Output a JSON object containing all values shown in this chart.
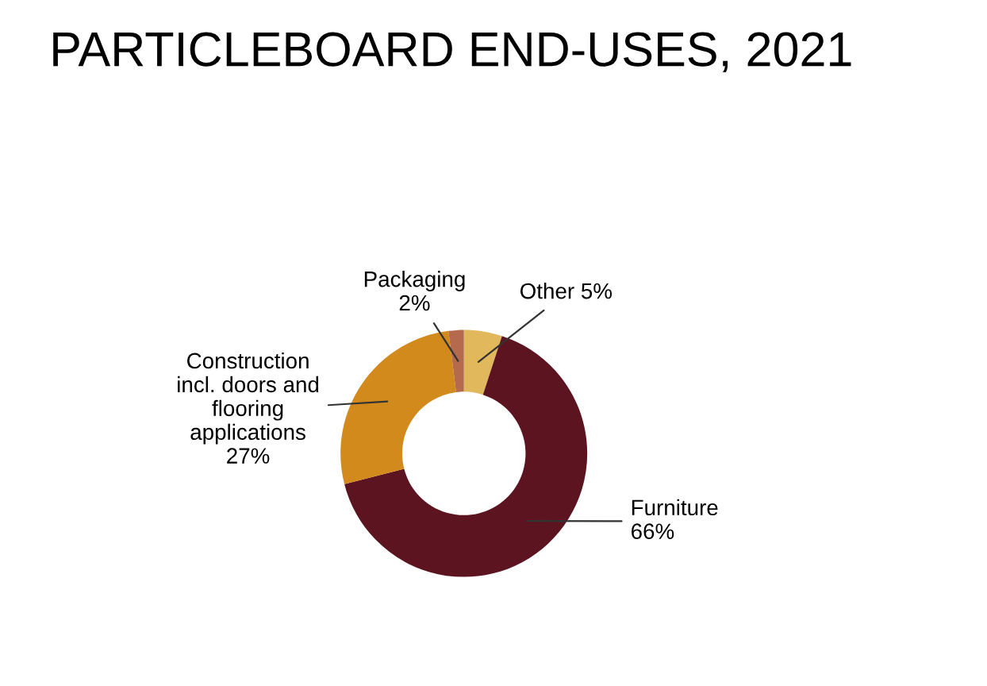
{
  "chart_data": {
    "type": "donut",
    "title": "PARTICLEBOARD END-USES, 2021",
    "categories": [
      "Other",
      "Furniture",
      "Construction\nincl. doors and\nflooring\napplications",
      "Packaging"
    ],
    "values": [
      5,
      66,
      27,
      2
    ],
    "value_labels": [
      "5%",
      "66%",
      "27%",
      "2%"
    ],
    "colors": [
      "#e2b85c",
      "#5c1420",
      "#d28a1c",
      "#b56a4e"
    ],
    "legend": false
  }
}
